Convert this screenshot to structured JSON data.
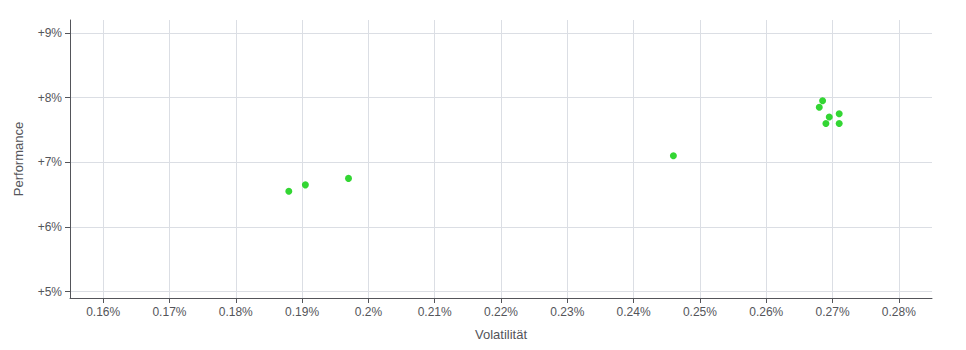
{
  "chart_data": {
    "type": "scatter",
    "xlabel": "Volatilität",
    "ylabel": "Performance",
    "x": [
      0.188,
      0.1905,
      0.197,
      0.246,
      0.268,
      0.2685,
      0.269,
      0.2695,
      0.271,
      0.271
    ],
    "values": [
      0.0655,
      0.0665,
      0.0675,
      0.071,
      0.0785,
      0.0795,
      0.076,
      0.077,
      0.0775,
      0.076
    ],
    "color": "#00cc00",
    "xlim": [
      0.155,
      0.285
    ],
    "ylim": [
      0.049,
      0.092
    ],
    "xticks": [
      {
        "value": 0.16,
        "label": "0.16%"
      },
      {
        "value": 0.17,
        "label": "0.17%"
      },
      {
        "value": 0.18,
        "label": "0.18%"
      },
      {
        "value": 0.19,
        "label": "0.19%"
      },
      {
        "value": 0.2,
        "label": "0.2%"
      },
      {
        "value": 0.21,
        "label": "0.21%"
      },
      {
        "value": 0.22,
        "label": "0.22%"
      },
      {
        "value": 0.23,
        "label": "0.23%"
      },
      {
        "value": 0.24,
        "label": "0.24%"
      },
      {
        "value": 0.25,
        "label": "0.25%"
      },
      {
        "value": 0.26,
        "label": "0.26%"
      },
      {
        "value": 0.27,
        "label": "0.27%"
      },
      {
        "value": 0.28,
        "label": "0.28%"
      }
    ],
    "yticks": [
      {
        "value": 0.05,
        "label": "+5%"
      },
      {
        "value": 0.06,
        "label": "+6%"
      },
      {
        "value": 0.07,
        "label": "+7%"
      },
      {
        "value": 0.08,
        "label": "+8%"
      },
      {
        "value": 0.09,
        "label": "+9%"
      }
    ],
    "grid": true
  }
}
